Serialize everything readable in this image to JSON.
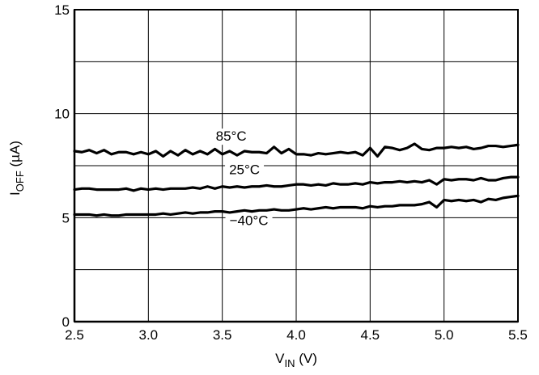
{
  "chart_data": {
    "type": "line",
    "xlabel_main": "V",
    "xlabel_sub": "IN",
    "xlabel_unit": " (V)",
    "ylabel_main": "I",
    "ylabel_sub": "OFF",
    "ylabel_unit": " (µA)",
    "xlim": [
      2.5,
      5.5
    ],
    "ylim": [
      0,
      15
    ],
    "x_ticks": [
      2.5,
      3.0,
      3.5,
      4.0,
      4.5,
      5.0,
      5.5
    ],
    "x_tick_labels": [
      "2.5",
      "3.0",
      "3.5",
      "4.0",
      "4.5",
      "5.0",
      "5.5"
    ],
    "y_ticks": [
      0,
      5,
      10,
      15
    ],
    "y_tick_labels": [
      "0",
      "5",
      "10",
      "15"
    ],
    "y_grid": [
      0,
      2.5,
      5,
      7.5,
      10,
      12.5,
      15
    ],
    "grid": true,
    "colors": {
      "line": "#000000",
      "grid": "#000000",
      "background": "#ffffff"
    },
    "series": [
      {
        "name": "85°C",
        "x": [
          2.5,
          2.55,
          2.6,
          2.65,
          2.7,
          2.75,
          2.8,
          2.85,
          2.9,
          2.95,
          3.0,
          3.05,
          3.1,
          3.15,
          3.2,
          3.25,
          3.3,
          3.35,
          3.4,
          3.45,
          3.5,
          3.55,
          3.6,
          3.65,
          3.7,
          3.75,
          3.8,
          3.85,
          3.9,
          3.95,
          4.0,
          4.05,
          4.1,
          4.15,
          4.2,
          4.25,
          4.3,
          4.35,
          4.4,
          4.45,
          4.5,
          4.55,
          4.6,
          4.65,
          4.7,
          4.75,
          4.8,
          4.85,
          4.9,
          4.95,
          5.0,
          5.05,
          5.1,
          5.15,
          5.2,
          5.25,
          5.3,
          5.35,
          5.4,
          5.45,
          5.5
        ],
        "y": [
          8.2,
          8.15,
          8.25,
          8.1,
          8.25,
          8.05,
          8.15,
          8.15,
          8.05,
          8.15,
          8.05,
          8.2,
          7.95,
          8.2,
          8.0,
          8.25,
          8.05,
          8.2,
          8.05,
          8.3,
          8.05,
          8.2,
          8.0,
          8.2,
          8.15,
          8.15,
          8.1,
          8.4,
          8.1,
          8.3,
          8.05,
          8.05,
          8.0,
          8.1,
          8.05,
          8.1,
          8.15,
          8.1,
          8.15,
          8.0,
          8.35,
          7.95,
          8.4,
          8.35,
          8.25,
          8.35,
          8.55,
          8.3,
          8.25,
          8.35,
          8.35,
          8.4,
          8.35,
          8.4,
          8.3,
          8.35,
          8.45,
          8.45,
          8.4,
          8.45,
          8.5
        ]
      },
      {
        "name": "25°C",
        "x": [
          2.5,
          2.55,
          2.6,
          2.65,
          2.7,
          2.75,
          2.8,
          2.85,
          2.9,
          2.95,
          3.0,
          3.05,
          3.1,
          3.15,
          3.2,
          3.25,
          3.3,
          3.35,
          3.4,
          3.45,
          3.5,
          3.55,
          3.6,
          3.65,
          3.7,
          3.75,
          3.8,
          3.85,
          3.9,
          3.95,
          4.0,
          4.05,
          4.1,
          4.15,
          4.2,
          4.25,
          4.3,
          4.35,
          4.4,
          4.45,
          4.5,
          4.55,
          4.6,
          4.65,
          4.7,
          4.75,
          4.8,
          4.85,
          4.9,
          4.95,
          5.0,
          5.05,
          5.1,
          5.15,
          5.2,
          5.25,
          5.3,
          5.35,
          5.4,
          5.45,
          5.5
        ],
        "y": [
          6.35,
          6.4,
          6.4,
          6.35,
          6.35,
          6.35,
          6.35,
          6.4,
          6.3,
          6.4,
          6.35,
          6.4,
          6.35,
          6.4,
          6.4,
          6.4,
          6.45,
          6.4,
          6.5,
          6.4,
          6.5,
          6.45,
          6.5,
          6.45,
          6.5,
          6.5,
          6.55,
          6.5,
          6.5,
          6.55,
          6.6,
          6.6,
          6.55,
          6.6,
          6.55,
          6.65,
          6.6,
          6.6,
          6.65,
          6.6,
          6.7,
          6.65,
          6.7,
          6.7,
          6.75,
          6.7,
          6.75,
          6.7,
          6.8,
          6.6,
          6.85,
          6.8,
          6.85,
          6.85,
          6.8,
          6.9,
          6.8,
          6.8,
          6.9,
          6.95,
          6.95
        ]
      },
      {
        "name": "−40°C",
        "x": [
          2.5,
          2.55,
          2.6,
          2.65,
          2.7,
          2.75,
          2.8,
          2.85,
          2.9,
          2.95,
          3.0,
          3.05,
          3.1,
          3.15,
          3.2,
          3.25,
          3.3,
          3.35,
          3.4,
          3.45,
          3.5,
          3.55,
          3.6,
          3.65,
          3.7,
          3.75,
          3.8,
          3.85,
          3.9,
          3.95,
          4.0,
          4.05,
          4.1,
          4.15,
          4.2,
          4.25,
          4.3,
          4.35,
          4.4,
          4.45,
          4.5,
          4.55,
          4.6,
          4.65,
          4.7,
          4.75,
          4.8,
          4.85,
          4.9,
          4.95,
          5.0,
          5.05,
          5.1,
          5.15,
          5.2,
          5.25,
          5.3,
          5.35,
          5.4,
          5.45,
          5.5
        ],
        "y": [
          5.15,
          5.15,
          5.15,
          5.1,
          5.15,
          5.1,
          5.1,
          5.15,
          5.15,
          5.15,
          5.15,
          5.15,
          5.2,
          5.15,
          5.2,
          5.25,
          5.2,
          5.25,
          5.25,
          5.3,
          5.3,
          5.25,
          5.3,
          5.35,
          5.3,
          5.35,
          5.35,
          5.4,
          5.35,
          5.35,
          5.4,
          5.45,
          5.4,
          5.45,
          5.5,
          5.45,
          5.5,
          5.5,
          5.5,
          5.45,
          5.55,
          5.5,
          5.55,
          5.55,
          5.6,
          5.6,
          5.6,
          5.65,
          5.75,
          5.5,
          5.85,
          5.8,
          5.85,
          5.8,
          5.85,
          5.75,
          5.9,
          5.85,
          5.95,
          6.0,
          6.05
        ]
      }
    ],
    "annotations": [
      {
        "text": "85°C",
        "x": 3.56,
        "y": 8.7
      },
      {
        "text": "25°C",
        "x": 3.65,
        "y": 7.1
      },
      {
        "text": "−40°C",
        "x": 3.68,
        "y": 4.65
      }
    ]
  }
}
